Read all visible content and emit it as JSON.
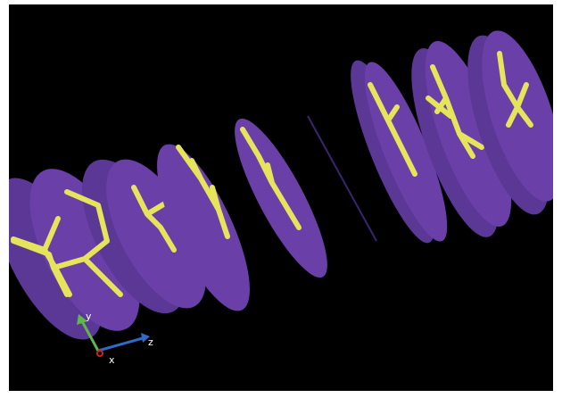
{
  "axes": {
    "y": "y",
    "z": "z",
    "x": "x"
  }
}
